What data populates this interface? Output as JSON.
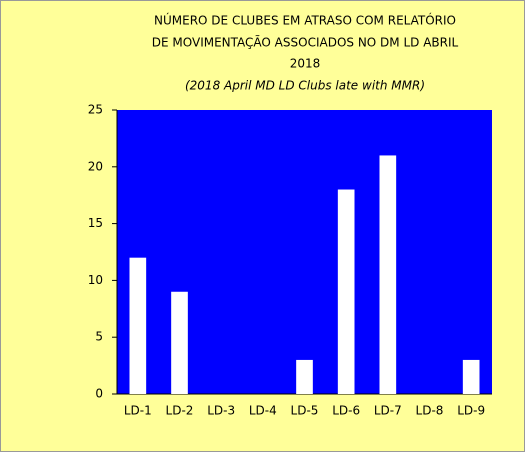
{
  "chart_data": {
    "type": "bar",
    "title": [
      "NÚMERO DE CLUBES EM ATRASO COM RELATÓRIO",
      "DE MOVIMENTAÇÃO  ASSOCIADOS NO DM LD ABRIL",
      "2018"
    ],
    "subtitle": "(2018 April MD LD Clubs late with MMR)",
    "categories": [
      "LD-1",
      "LD-2",
      "LD-3",
      "LD-4",
      "LD-5",
      "LD-6",
      "LD-7",
      "LD-8",
      "LD-9"
    ],
    "values": [
      12,
      9,
      0,
      0,
      3,
      18,
      21,
      0,
      3
    ],
    "color": "#ffffff",
    "plot_color": "#0000ff",
    "ylim": [
      0,
      25
    ],
    "yticks": [
      0,
      5,
      10,
      15,
      20,
      25
    ],
    "grid": false
  }
}
